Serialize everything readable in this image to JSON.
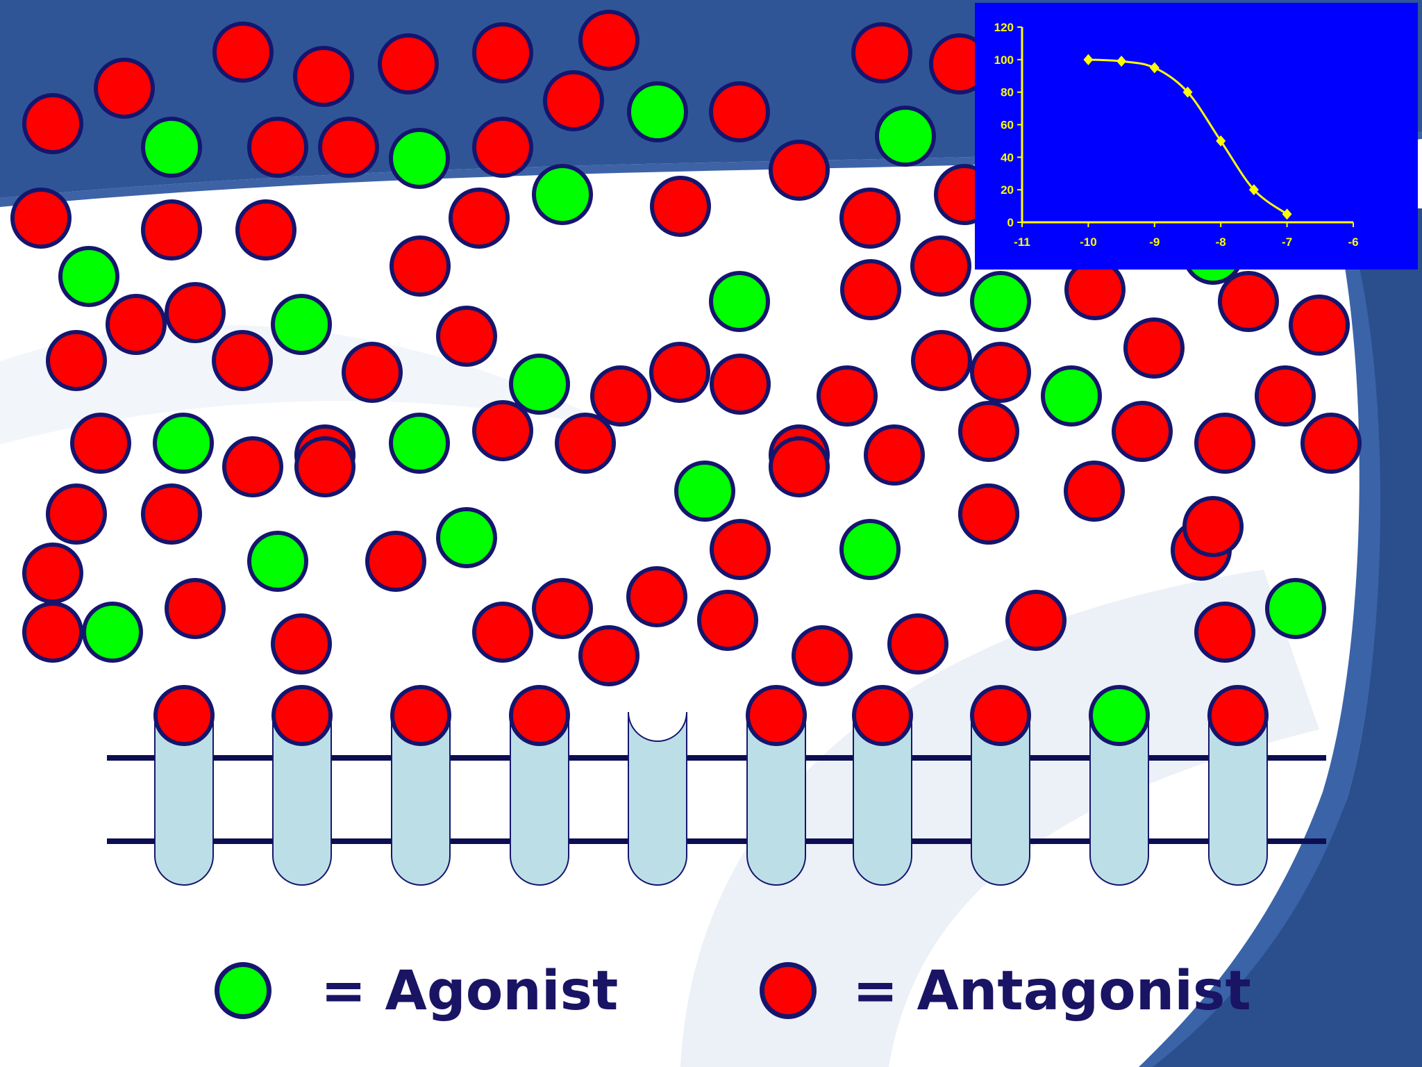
{
  "colors": {
    "agonist": "#00ff00",
    "antagonist": "#ff0000",
    "outline": "#15156e",
    "receptor_fill": "#bcdfe7",
    "membrane": "#0d0d52",
    "banner_blue": "#2f5597",
    "right_band": "#2b4f8c",
    "text": "#1a1464",
    "inset_bg": "#0000ff",
    "inset_fg": "#ffff00"
  },
  "legend": {
    "agonist_label": "= Agonist",
    "antagonist_label": "= Antagonist"
  },
  "receptors": [
    {
      "bound": "antagonist"
    },
    {
      "bound": "antagonist"
    },
    {
      "bound": "antagonist"
    },
    {
      "bound": "antagonist"
    },
    {
      "bound": "none"
    },
    {
      "bound": "antagonist"
    },
    {
      "bound": "antagonist"
    },
    {
      "bound": "antagonist"
    },
    {
      "bound": "agonist"
    },
    {
      "bound": "antagonist"
    }
  ],
  "chart_data": {
    "type": "line",
    "x": [
      -10,
      -9.5,
      -9,
      -8.5,
      -8,
      -7.5,
      -7
    ],
    "y": [
      100,
      99,
      95,
      80,
      50,
      20,
      5
    ],
    "xlim": [
      -11,
      -6
    ],
    "ylim": [
      0,
      120
    ],
    "x_ticks": [
      -11,
      -10,
      -9,
      -8,
      -7,
      -6
    ],
    "y_ticks": [
      0,
      20,
      40,
      60,
      80,
      100,
      120
    ],
    "x_tick_labels": [
      "-11",
      "-10",
      "-9",
      "-8",
      "-7",
      "-6"
    ],
    "y_tick_labels": [
      "0",
      "20",
      "40",
      "60",
      "80",
      "100",
      "120"
    ],
    "marker": "diamond",
    "grid": false
  }
}
